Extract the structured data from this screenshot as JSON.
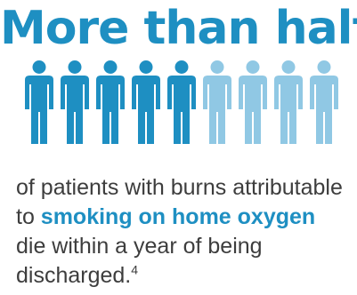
{
  "infographic": {
    "headline": "More than half",
    "people": {
      "total": 9,
      "highlighted": 5,
      "highlight_color": "#1e8fc2",
      "muted_color": "#90c8e4",
      "icon": "person-icon"
    },
    "statement": {
      "part1": "of patients with burns attributable to ",
      "emphasis": "smoking on home oxygen",
      "part2": " die within a year of being discharged.",
      "footnote": "4"
    },
    "colors": {
      "accent": "#1e8fc2",
      "text": "#3d3d3d"
    }
  }
}
